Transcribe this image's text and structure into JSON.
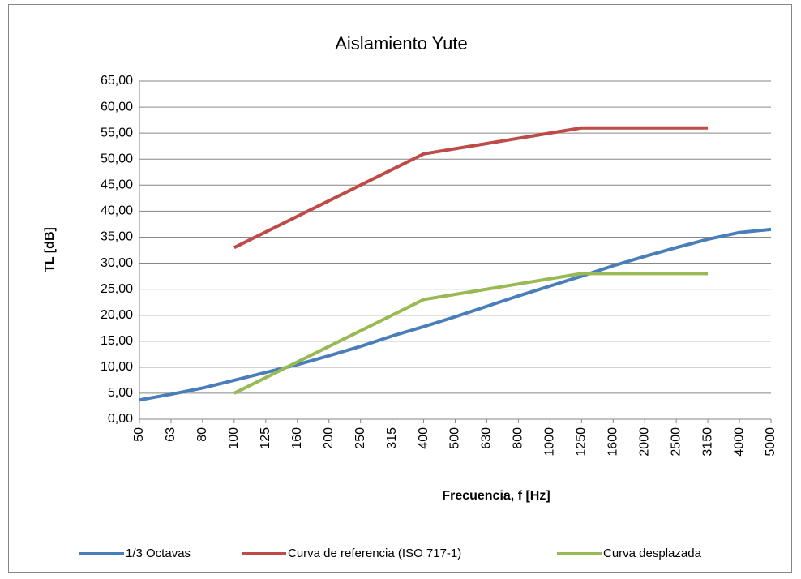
{
  "chart_data": {
    "type": "line",
    "title": "Aislamiento Yute",
    "x_label": "Frecuencia, f [Hz]",
    "y_label": "TL [dB]",
    "categories": [
      "50",
      "63",
      "80",
      "100",
      "125",
      "160",
      "200",
      "250",
      "315",
      "400",
      "500",
      "630",
      "800",
      "1000",
      "1250",
      "1600",
      "2000",
      "2500",
      "3150",
      "4000",
      "5000"
    ],
    "series": [
      {
        "name": "1/3 Octavas",
        "color": "#4a7ebb",
        "values": [
          3.7,
          4.8,
          6.0,
          7.5,
          9.0,
          10.5,
          12.2,
          14.0,
          16.0,
          17.8,
          19.7,
          21.7,
          23.7,
          25.6,
          27.5,
          29.5,
          31.3,
          33.0,
          34.6,
          35.9,
          36.5
        ]
      },
      {
        "name": "Curva de referencia (ISO 717-1)",
        "color": "#be4b48",
        "values": [
          null,
          null,
          null,
          33,
          36,
          39,
          42,
          45,
          48,
          51,
          52,
          53,
          54,
          55,
          56,
          56,
          56,
          56,
          56,
          null,
          null
        ]
      },
      {
        "name": "Curva desplazada",
        "color": "#98b954",
        "values": [
          null,
          null,
          null,
          5,
          8,
          11,
          14,
          17,
          20,
          23,
          24,
          25,
          26,
          27,
          28,
          28,
          28,
          28,
          28,
          null,
          null
        ]
      }
    ],
    "ylim": [
      0,
      65
    ],
    "yticks": [
      {
        "value": 0,
        "label": "0,00"
      },
      {
        "value": 5,
        "label": "5,00"
      },
      {
        "value": 10,
        "label": "10,00"
      },
      {
        "value": 15,
        "label": "15,00"
      },
      {
        "value": 20,
        "label": "20,00"
      },
      {
        "value": 25,
        "label": "25,00"
      },
      {
        "value": 30,
        "label": "30,00"
      },
      {
        "value": 35,
        "label": "35,00"
      },
      {
        "value": 40,
        "label": "40,00"
      },
      {
        "value": 45,
        "label": "45,00"
      },
      {
        "value": 50,
        "label": "50,00"
      },
      {
        "value": 55,
        "label": "55,00"
      },
      {
        "value": 60,
        "label": "60,00"
      },
      {
        "value": 65,
        "label": "65,00"
      }
    ],
    "grid": true,
    "legend": "bottom"
  }
}
